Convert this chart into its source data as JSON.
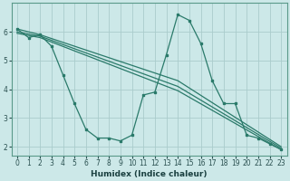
{
  "xlabel": "Humidex (Indice chaleur)",
  "bg_color": "#cce8e8",
  "grid_color": "#aacccc",
  "line_color": "#2a7a6a",
  "spine_color": "#5a9a8a",
  "xlim": [
    -0.5,
    23.5
  ],
  "ylim": [
    1.7,
    7.0
  ],
  "yticks": [
    2,
    3,
    4,
    5,
    6
  ],
  "xticks": [
    0,
    1,
    2,
    3,
    4,
    5,
    6,
    7,
    8,
    9,
    10,
    11,
    12,
    13,
    14,
    15,
    16,
    17,
    18,
    19,
    20,
    21,
    22,
    23
  ],
  "xtick_labels": [
    "0",
    "1",
    "2",
    "3",
    "4",
    "5",
    "6",
    "7",
    "8",
    "9",
    "10",
    "11",
    "12",
    "13",
    "14",
    "15",
    "16",
    "17",
    "18",
    "19",
    "20",
    "21",
    "22",
    "23"
  ],
  "lines": [
    {
      "x": [
        0,
        1,
        2,
        3,
        4,
        5,
        6,
        7,
        8,
        9,
        10,
        11,
        12,
        13,
        14,
        15,
        16,
        17,
        18,
        19,
        20,
        21,
        22,
        23
      ],
      "y": [
        6.1,
        5.8,
        5.9,
        5.5,
        4.5,
        3.5,
        2.6,
        2.3,
        2.3,
        2.2,
        2.4,
        3.8,
        3.9,
        5.2,
        6.6,
        6.4,
        5.6,
        4.3,
        3.5,
        3.5,
        2.4,
        2.3,
        2.1,
        1.9
      ]
    },
    {
      "x": [
        0,
        2,
        14,
        23
      ],
      "y": [
        6.1,
        5.9,
        4.3,
        2.0
      ]
    },
    {
      "x": [
        0,
        2,
        14,
        23
      ],
      "y": [
        6.0,
        5.85,
        4.1,
        1.95
      ]
    },
    {
      "x": [
        0,
        2,
        14,
        23
      ],
      "y": [
        5.95,
        5.8,
        3.95,
        1.9
      ]
    }
  ]
}
